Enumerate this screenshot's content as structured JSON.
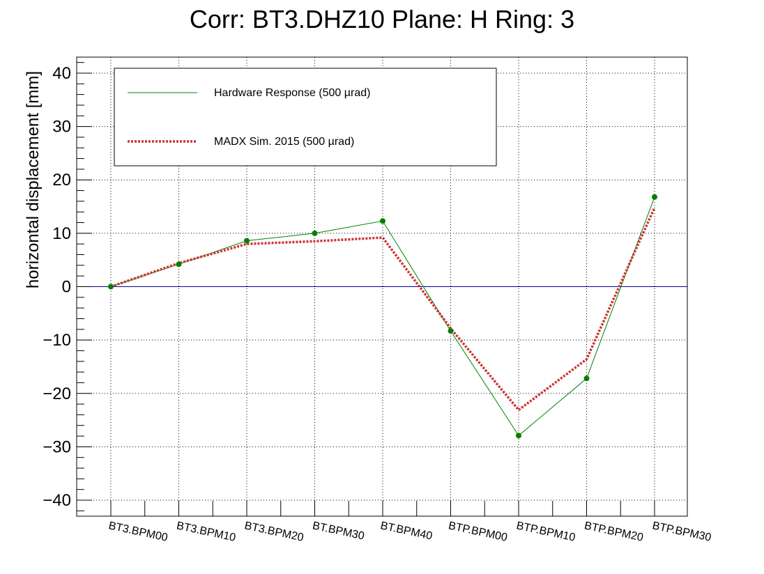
{
  "chart_data": {
    "type": "line",
    "title": "Corr: BT3.DHZ10 Plane: H Ring: 3",
    "xlabel": "",
    "ylabel": "horizontal displacement [mm]",
    "ylim": [
      -43,
      43
    ],
    "yticks": [
      -40,
      -30,
      -20,
      -10,
      0,
      10,
      20,
      30,
      40
    ],
    "ytick_labels": [
      "−40",
      "−30",
      "−20",
      "−10",
      "0",
      "10",
      "20",
      "30",
      "40"
    ],
    "categories": [
      "BT3.BPM00",
      "BT3.BPM10",
      "BT3.BPM20",
      "BT.BPM30",
      "BT.BPM40",
      "BTP.BPM00",
      "BTP.BPM10",
      "BTP.BPM20",
      "BTP.BPM30"
    ],
    "grid": true,
    "reference_line": {
      "y": 0,
      "color": "#000099"
    },
    "legend_position": "top-left",
    "series": [
      {
        "name": "Hardware Response (500 µrad)",
        "color": "#008000",
        "style": "solid",
        "markers": true,
        "values": [
          0.0,
          4.2,
          8.6,
          10.0,
          12.3,
          -8.3,
          -27.9,
          -17.2,
          16.8
        ]
      },
      {
        "name": "MADX Sim. 2015 (500 µrad)",
        "color": "#cc3333",
        "style": "dotted",
        "markers": false,
        "values": [
          0.0,
          4.4,
          8.0,
          8.5,
          9.2,
          -7.8,
          -23.1,
          -13.6,
          14.8
        ]
      }
    ]
  }
}
